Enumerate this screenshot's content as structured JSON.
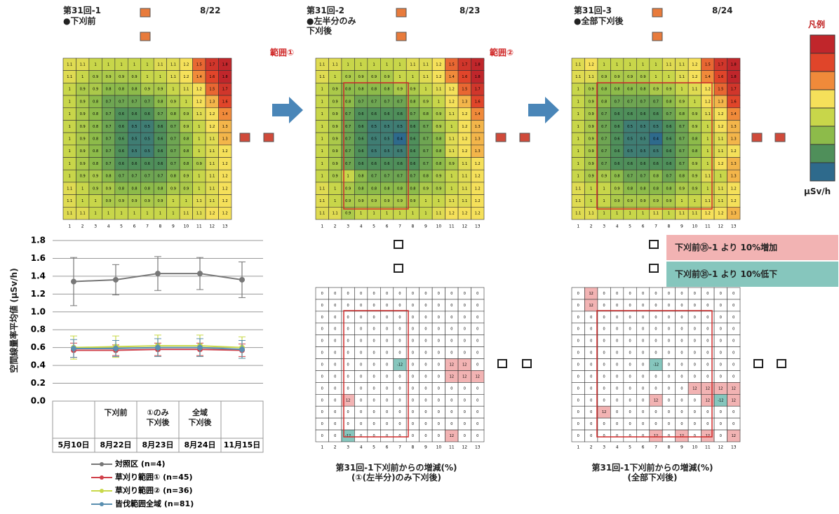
{
  "heatmaps": [
    {
      "title": "第31回-1",
      "subtitle": "●下刈前",
      "date": "8/22",
      "values": [
        [
          1.1,
          1.1,
          1.0,
          1.0,
          1.0,
          1.0,
          1.0,
          1.1,
          1.1,
          1.2,
          1.5,
          1.7,
          1.8
        ],
        [
          1.1,
          1.0,
          0.9,
          0.9,
          0.9,
          0.9,
          1.0,
          1.0,
          1.1,
          1.2,
          1.4,
          1.6,
          1.8
        ],
        [
          1.0,
          0.9,
          0.9,
          0.8,
          0.8,
          0.8,
          0.9,
          0.9,
          1.0,
          1.1,
          1.2,
          1.5,
          1.7
        ],
        [
          1.0,
          0.9,
          0.8,
          0.7,
          0.7,
          0.7,
          0.7,
          0.8,
          0.9,
          1.0,
          1.2,
          1.3,
          1.6
        ],
        [
          1.0,
          0.9,
          0.8,
          0.7,
          0.6,
          0.6,
          0.6,
          0.7,
          0.8,
          0.9,
          1.1,
          1.2,
          1.4
        ],
        [
          1.0,
          0.9,
          0.8,
          0.7,
          0.6,
          0.5,
          0.5,
          0.6,
          0.7,
          0.9,
          1.0,
          1.2,
          1.3
        ],
        [
          1.0,
          0.9,
          0.8,
          0.7,
          0.6,
          0.5,
          0.5,
          0.6,
          0.7,
          0.8,
          1.0,
          1.1,
          1.3
        ],
        [
          1.0,
          0.9,
          0.8,
          0.7,
          0.6,
          0.5,
          0.5,
          0.6,
          0.7,
          0.8,
          1.0,
          1.1,
          1.2
        ],
        [
          1.0,
          0.9,
          0.8,
          0.7,
          0.6,
          0.6,
          0.6,
          0.6,
          0.7,
          0.8,
          0.9,
          1.1,
          1.2
        ],
        [
          1.0,
          0.9,
          0.9,
          0.8,
          0.7,
          0.7,
          0.7,
          0.7,
          0.8,
          0.9,
          1.0,
          1.1,
          1.2
        ],
        [
          1.1,
          1.0,
          0.9,
          0.9,
          0.8,
          0.8,
          0.8,
          0.8,
          0.9,
          0.9,
          1.0,
          1.1,
          1.2
        ],
        [
          1.1,
          1.0,
          1.0,
          0.9,
          0.9,
          0.9,
          0.9,
          0.9,
          1.0,
          1.0,
          1.1,
          1.1,
          1.2
        ],
        [
          1.1,
          1.1,
          1.0,
          1.0,
          1.0,
          1.0,
          1.0,
          1.0,
          1.0,
          1.1,
          1.1,
          1.2,
          1.2
        ]
      ]
    },
    {
      "title": "第31回-2",
      "subtitle": "●左半分のみ\n下刈後",
      "date": "8/23",
      "values": [
        [
          1.1,
          1.1,
          1.0,
          1.0,
          1.0,
          1.0,
          1.0,
          1.1,
          1.1,
          1.2,
          1.5,
          1.7,
          1.8
        ],
        [
          1.1,
          1.0,
          0.9,
          0.9,
          0.9,
          0.9,
          1.0,
          1.0,
          1.1,
          1.2,
          1.4,
          1.6,
          1.8
        ],
        [
          1.0,
          0.9,
          0.8,
          0.8,
          0.8,
          0.8,
          0.9,
          0.9,
          1.0,
          1.1,
          1.2,
          1.5,
          1.7
        ],
        [
          1.0,
          0.9,
          0.8,
          0.7,
          0.7,
          0.7,
          0.7,
          0.8,
          0.9,
          1.0,
          1.2,
          1.3,
          1.6
        ],
        [
          1.0,
          0.9,
          0.7,
          0.6,
          0.6,
          0.6,
          0.6,
          0.7,
          0.8,
          0.9,
          1.1,
          1.2,
          1.4
        ],
        [
          1.0,
          0.9,
          0.7,
          0.6,
          0.5,
          0.5,
          0.5,
          0.6,
          0.7,
          0.9,
          1.0,
          1.2,
          1.3
        ],
        [
          1.0,
          0.9,
          0.7,
          0.6,
          0.5,
          0.5,
          0.4,
          0.6,
          0.7,
          0.8,
          1.1,
          1.2,
          1.3
        ],
        [
          1.0,
          0.9,
          0.7,
          0.6,
          0.5,
          0.5,
          0.5,
          0.6,
          0.7,
          0.8,
          1.1,
          1.2,
          1.3
        ],
        [
          1.0,
          0.9,
          0.7,
          0.6,
          0.6,
          0.6,
          0.6,
          0.6,
          0.7,
          0.8,
          0.9,
          1.1,
          1.2
        ],
        [
          1.0,
          0.9,
          1.0,
          0.8,
          0.7,
          0.7,
          0.7,
          0.7,
          0.8,
          0.9,
          1.0,
          1.1,
          1.2
        ],
        [
          1.1,
          1.0,
          0.9,
          0.8,
          0.8,
          0.8,
          0.8,
          0.8,
          0.9,
          0.9,
          1.0,
          1.1,
          1.2
        ],
        [
          1.1,
          1.0,
          0.9,
          0.9,
          0.9,
          0.9,
          0.9,
          0.9,
          1.0,
          1.0,
          1.1,
          1.1,
          1.2
        ],
        [
          1.1,
          1.1,
          0.9,
          1.0,
          1.0,
          1.0,
          1.0,
          1.0,
          1.0,
          1.1,
          1.2,
          1.2,
          1.2
        ]
      ]
    },
    {
      "title": "第31回-3",
      "subtitle": "●全部下刈後",
      "date": "8/24",
      "values": [
        [
          1.1,
          1.2,
          1.0,
          1.0,
          1.0,
          1.0,
          1.0,
          1.1,
          1.1,
          1.2,
          1.5,
          1.7,
          1.8
        ],
        [
          1.1,
          1.1,
          0.9,
          0.9,
          0.9,
          0.9,
          1.0,
          1.0,
          1.1,
          1.2,
          1.4,
          1.6,
          1.8
        ],
        [
          1.0,
          0.9,
          0.8,
          0.8,
          0.8,
          0.8,
          0.9,
          0.9,
          1.0,
          1.1,
          1.2,
          1.5,
          1.7
        ],
        [
          1.0,
          0.9,
          0.8,
          0.7,
          0.7,
          0.7,
          0.7,
          0.8,
          0.9,
          1.0,
          1.2,
          1.3,
          1.6
        ],
        [
          1.0,
          0.9,
          0.7,
          0.6,
          0.6,
          0.6,
          0.6,
          0.7,
          0.8,
          0.9,
          1.1,
          1.2,
          1.4
        ],
        [
          1.0,
          0.9,
          0.7,
          0.6,
          0.5,
          0.5,
          0.5,
          0.6,
          0.7,
          0.9,
          1.0,
          1.2,
          1.3
        ],
        [
          1.0,
          0.9,
          0.7,
          0.6,
          0.5,
          0.5,
          0.4,
          0.6,
          0.7,
          0.8,
          1.0,
          1.1,
          1.3
        ],
        [
          1.0,
          0.9,
          0.7,
          0.6,
          0.5,
          0.5,
          0.5,
          0.6,
          0.7,
          0.8,
          1.0,
          1.1,
          1.2
        ],
        [
          1.0,
          0.9,
          0.7,
          0.6,
          0.6,
          0.6,
          0.6,
          0.6,
          0.7,
          0.9,
          1.0,
          1.2,
          1.3
        ],
        [
          1.0,
          0.9,
          0.9,
          0.8,
          0.7,
          0.7,
          0.8,
          0.7,
          0.8,
          0.9,
          1.1,
          1.0,
          1.3
        ],
        [
          1.1,
          1.0,
          1.0,
          0.9,
          0.8,
          0.8,
          0.8,
          0.8,
          0.9,
          0.9,
          1.0,
          1.1,
          1.2
        ],
        [
          1.1,
          1.0,
          1.0,
          0.9,
          0.9,
          0.9,
          0.9,
          0.9,
          1.0,
          1.0,
          1.1,
          1.1,
          1.2
        ],
        [
          1.1,
          1.1,
          1.0,
          1.0,
          1.0,
          1.0,
          1.1,
          1.0,
          1.1,
          1.1,
          1.2,
          1.2,
          1.3
        ]
      ]
    }
  ],
  "columns": [
    1,
    2,
    3,
    4,
    5,
    6,
    7,
    8,
    9,
    10,
    11,
    12,
    13
  ],
  "legend": {
    "title": "凡例",
    "unit": "µSv/h",
    "colors": [
      "#c0262b",
      "#e0452a",
      "#f08a3a",
      "#f5e05a",
      "#c8d64a",
      "#8dbb4a",
      "#4f8f5a",
      "#2e6a8c"
    ],
    "vlim": [
      0.4,
      1.8
    ]
  },
  "annotations": [
    "範囲①",
    "範囲②"
  ],
  "difference_maps": [
    {
      "title": "第31回-1下刈前からの増減(%)\n(①(左半分)のみ下刈後)",
      "values": [
        [
          0,
          0,
          0,
          0,
          0,
          0,
          0,
          0,
          0,
          0,
          0,
          0,
          0
        ],
        [
          0,
          0,
          0,
          0,
          0,
          0,
          0,
          0,
          0,
          0,
          0,
          0,
          0
        ],
        [
          0,
          0,
          0,
          0,
          0,
          0,
          0,
          0,
          0,
          0,
          0,
          0,
          0
        ],
        [
          0,
          0,
          0,
          0,
          0,
          0,
          0,
          0,
          0,
          0,
          0,
          0,
          0
        ],
        [
          0,
          0,
          0,
          0,
          0,
          0,
          0,
          0,
          0,
          0,
          0,
          0,
          0
        ],
        [
          0,
          0,
          0,
          0,
          0,
          0,
          0,
          0,
          0,
          0,
          0,
          0,
          0
        ],
        [
          0,
          0,
          0,
          0,
          0,
          0,
          -12,
          0,
          0,
          0,
          12,
          12,
          0
        ],
        [
          0,
          0,
          0,
          0,
          0,
          0,
          0,
          0,
          0,
          0,
          12,
          12,
          12
        ],
        [
          0,
          0,
          0,
          0,
          0,
          0,
          0,
          0,
          0,
          0,
          0,
          0,
          0
        ],
        [
          0,
          0,
          12,
          0,
          0,
          0,
          0,
          0,
          0,
          0,
          0,
          0,
          0
        ],
        [
          0,
          0,
          0,
          0,
          0,
          0,
          0,
          0,
          0,
          0,
          0,
          0,
          0
        ],
        [
          0,
          0,
          0,
          0,
          0,
          0,
          0,
          0,
          0,
          0,
          0,
          0,
          0
        ],
        [
          0,
          0,
          -12,
          0,
          0,
          0,
          0,
          0,
          0,
          0,
          12,
          0,
          0
        ]
      ]
    },
    {
      "title": "第31回-1下刈前からの増減(%)\n(全部下刈後)",
      "values": [
        [
          0,
          12,
          0,
          0,
          0,
          0,
          0,
          0,
          0,
          0,
          0,
          0,
          0
        ],
        [
          0,
          12,
          0,
          0,
          0,
          0,
          0,
          0,
          0,
          0,
          0,
          0,
          0
        ],
        [
          0,
          0,
          0,
          0,
          0,
          0,
          0,
          0,
          0,
          0,
          0,
          0,
          0
        ],
        [
          0,
          0,
          0,
          0,
          0,
          0,
          0,
          0,
          0,
          0,
          0,
          0,
          0
        ],
        [
          0,
          0,
          0,
          0,
          0,
          0,
          0,
          0,
          0,
          0,
          0,
          0,
          0
        ],
        [
          0,
          0,
          0,
          0,
          0,
          0,
          0,
          0,
          0,
          0,
          0,
          0,
          0
        ],
        [
          0,
          0,
          0,
          0,
          0,
          0,
          -12,
          0,
          0,
          0,
          0,
          0,
          0
        ],
        [
          0,
          0,
          0,
          0,
          0,
          0,
          0,
          0,
          0,
          0,
          0,
          0,
          0
        ],
        [
          0,
          0,
          0,
          0,
          0,
          0,
          0,
          0,
          0,
          12,
          12,
          12,
          12
        ],
        [
          0,
          0,
          0,
          0,
          0,
          0,
          12,
          0,
          0,
          0,
          12,
          -12,
          12
        ],
        [
          0,
          0,
          12,
          0,
          0,
          0,
          0,
          0,
          0,
          0,
          0,
          0,
          0
        ],
        [
          0,
          0,
          0,
          0,
          0,
          0,
          0,
          0,
          0,
          0,
          0,
          0,
          0
        ],
        [
          0,
          0,
          0,
          0,
          0,
          0,
          12,
          0,
          12,
          0,
          12,
          0,
          12
        ]
      ]
    }
  ],
  "difference_legend": [
    {
      "label": "下刈前㉛-1 より 10%増加",
      "color": "#f2b3b3"
    },
    {
      "label": "下刈前㉛-1 より 10%低下",
      "color": "#86c6bd"
    }
  ],
  "threshold": 10,
  "chart_data": {
    "type": "line",
    "y_label": "空間線量率平均値 (µSv/h)",
    "categories": [
      "5月10日",
      "8月22日",
      "8月23日",
      "8月24日",
      "11月15日"
    ],
    "phase_labels": [
      null,
      "下刈前",
      "①のみ\n下刈後",
      "全域\n下刈後",
      null
    ],
    "ylim": [
      0,
      1.8
    ],
    "yticks": [
      {
        "value": 0,
        "label": "0.0"
      },
      0.2,
      0.4,
      0.6,
      0.8,
      {
        "value": 1,
        "label": "1.0"
      },
      1.2,
      1.4,
      1.6,
      1.8
    ],
    "grid": true,
    "series": [
      {
        "name": "対照区 (n=4)",
        "color": "#777777",
        "values": [
          1.34,
          1.36,
          1.43,
          1.43,
          1.36
        ],
        "errors": [
          0.27,
          0.17,
          0.19,
          0.18,
          0.2
        ]
      },
      {
        "name": "草刈り範囲① (n=45)",
        "color": "#d0404a",
        "values": [
          0.57,
          0.57,
          0.58,
          0.58,
          0.57
        ],
        "errors": [
          0.08,
          0.06,
          0.07,
          0.07,
          0.07
        ]
      },
      {
        "name": "草刈り範囲② (n=36)",
        "color": "#c9d94a",
        "values": [
          0.6,
          0.61,
          0.62,
          0.62,
          0.6
        ],
        "errors": [
          0.13,
          0.12,
          0.12,
          0.12,
          0.12
        ]
      },
      {
        "name": "皆伐範囲全域 (n=81)",
        "color": "#5a8fb0",
        "values": [
          0.59,
          0.59,
          0.6,
          0.6,
          0.58
        ],
        "errors": [
          0.1,
          0.09,
          0.1,
          0.1,
          0.1
        ]
      }
    ]
  }
}
